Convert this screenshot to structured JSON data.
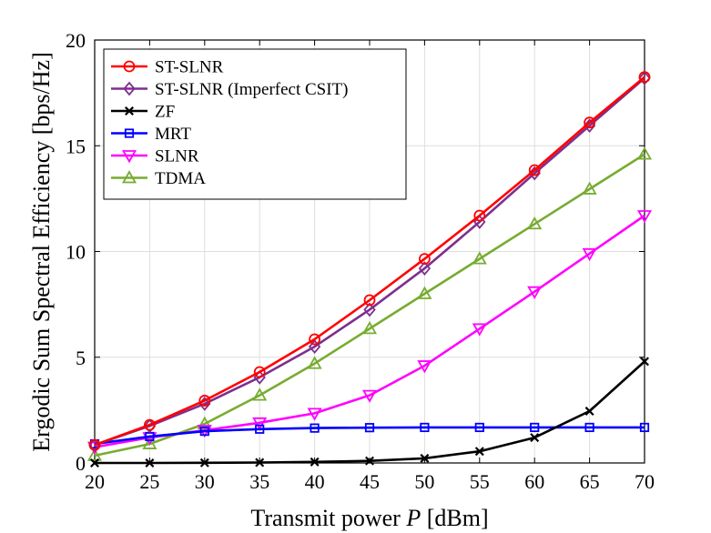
{
  "chart_data": {
    "type": "line",
    "title": "",
    "xlabel": {
      "prefix": "Transmit power ",
      "symbol": "P",
      "suffix": " [dBm]"
    },
    "ylabel": "Ergodic Sum Spectral Efficiency [bps/Hz]",
    "x": [
      20,
      25,
      30,
      35,
      40,
      45,
      50,
      55,
      60,
      65,
      70
    ],
    "xlim": [
      20,
      70
    ],
    "ylim": [
      0,
      20
    ],
    "xticks": [
      20,
      25,
      30,
      35,
      40,
      45,
      50,
      55,
      60,
      65,
      70
    ],
    "yticks": [
      0,
      5,
      10,
      15,
      20
    ],
    "grid": true,
    "legend_position": "top-left",
    "series": [
      {
        "name": "ST-SLNR",
        "color": "#ff0000",
        "marker": "circle",
        "values": [
          0.85,
          1.8,
          2.95,
          4.3,
          5.85,
          7.7,
          9.65,
          11.7,
          13.85,
          16.1,
          18.25
        ]
      },
      {
        "name": "ST-SLNR (Imperfect CSIT)",
        "color": "#7e2f8e",
        "marker": "diamond",
        "values": [
          0.85,
          1.75,
          2.8,
          4.05,
          5.5,
          7.25,
          9.2,
          11.4,
          13.7,
          15.95,
          18.2
        ]
      },
      {
        "name": "ZF",
        "color": "#000000",
        "marker": "x",
        "values": [
          0.0,
          0.0,
          0.01,
          0.02,
          0.05,
          0.1,
          0.22,
          0.55,
          1.2,
          2.45,
          4.8
        ]
      },
      {
        "name": "MRT",
        "color": "#0000ff",
        "marker": "square",
        "values": [
          0.9,
          1.25,
          1.5,
          1.6,
          1.65,
          1.67,
          1.68,
          1.68,
          1.68,
          1.68,
          1.68
        ]
      },
      {
        "name": "SLNR",
        "color": "#ff00ff",
        "marker": "triangle-down",
        "values": [
          0.75,
          1.2,
          1.55,
          1.9,
          2.35,
          3.2,
          4.6,
          6.35,
          8.1,
          9.9,
          11.7
        ]
      },
      {
        "name": "TDMA",
        "color": "#77ac30",
        "marker": "triangle-up",
        "values": [
          0.35,
          0.9,
          1.85,
          3.2,
          4.7,
          6.35,
          8.0,
          9.65,
          11.3,
          12.95,
          14.6
        ]
      }
    ]
  }
}
